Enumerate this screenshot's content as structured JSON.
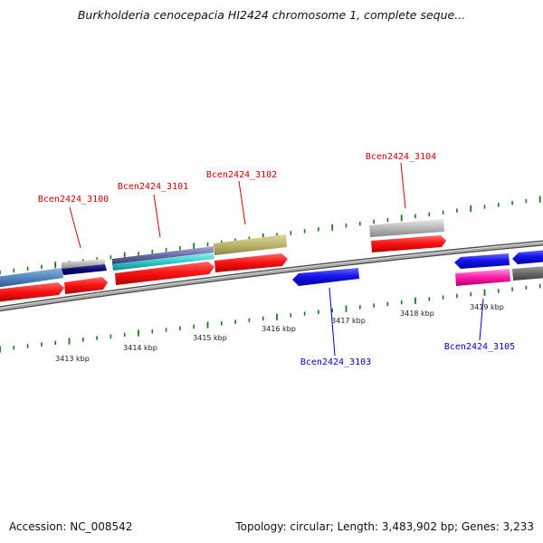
{
  "title": "Burkholderia cenocepacia HI2424 chromosome 1, complete seque...",
  "footer": {
    "accession": "Accession: NC_008542",
    "summary": "Topology: circular; Length: 3,483,902 bp; Genes: 3,233"
  },
  "ticks": [
    "3413 kbp",
    "3414 kbp",
    "3415 kbp",
    "3416 kbp",
    "3417 kbp",
    "3418 kbp",
    "3419 kbp"
  ],
  "genes_forward": [
    {
      "id": "g3100",
      "label": "Bcen2424_3100",
      "color": "#cc0000"
    },
    {
      "id": "g3101",
      "label": "Bcen2424_3101",
      "color": "#cc0000"
    },
    {
      "id": "g3102",
      "label": "Bcen2424_3102",
      "color": "#cc0000"
    },
    {
      "id": "g3104",
      "label": "Bcen2424_3104",
      "color": "#cc0000"
    }
  ],
  "genes_reverse": [
    {
      "id": "g3103",
      "label": "Bcen2424_3103",
      "color": "#0000cc"
    },
    {
      "id": "g3105",
      "label": "Bcen2424_3105",
      "color": "#0000cc"
    }
  ],
  "colors": {
    "cds_forward": "#ff1010",
    "cds_reverse": "#1010ee",
    "ticks": "#1a7a1a",
    "backbone": "#8a8a8a",
    "label_forward": "#cc0000",
    "label_reverse": "#0000cc"
  }
}
